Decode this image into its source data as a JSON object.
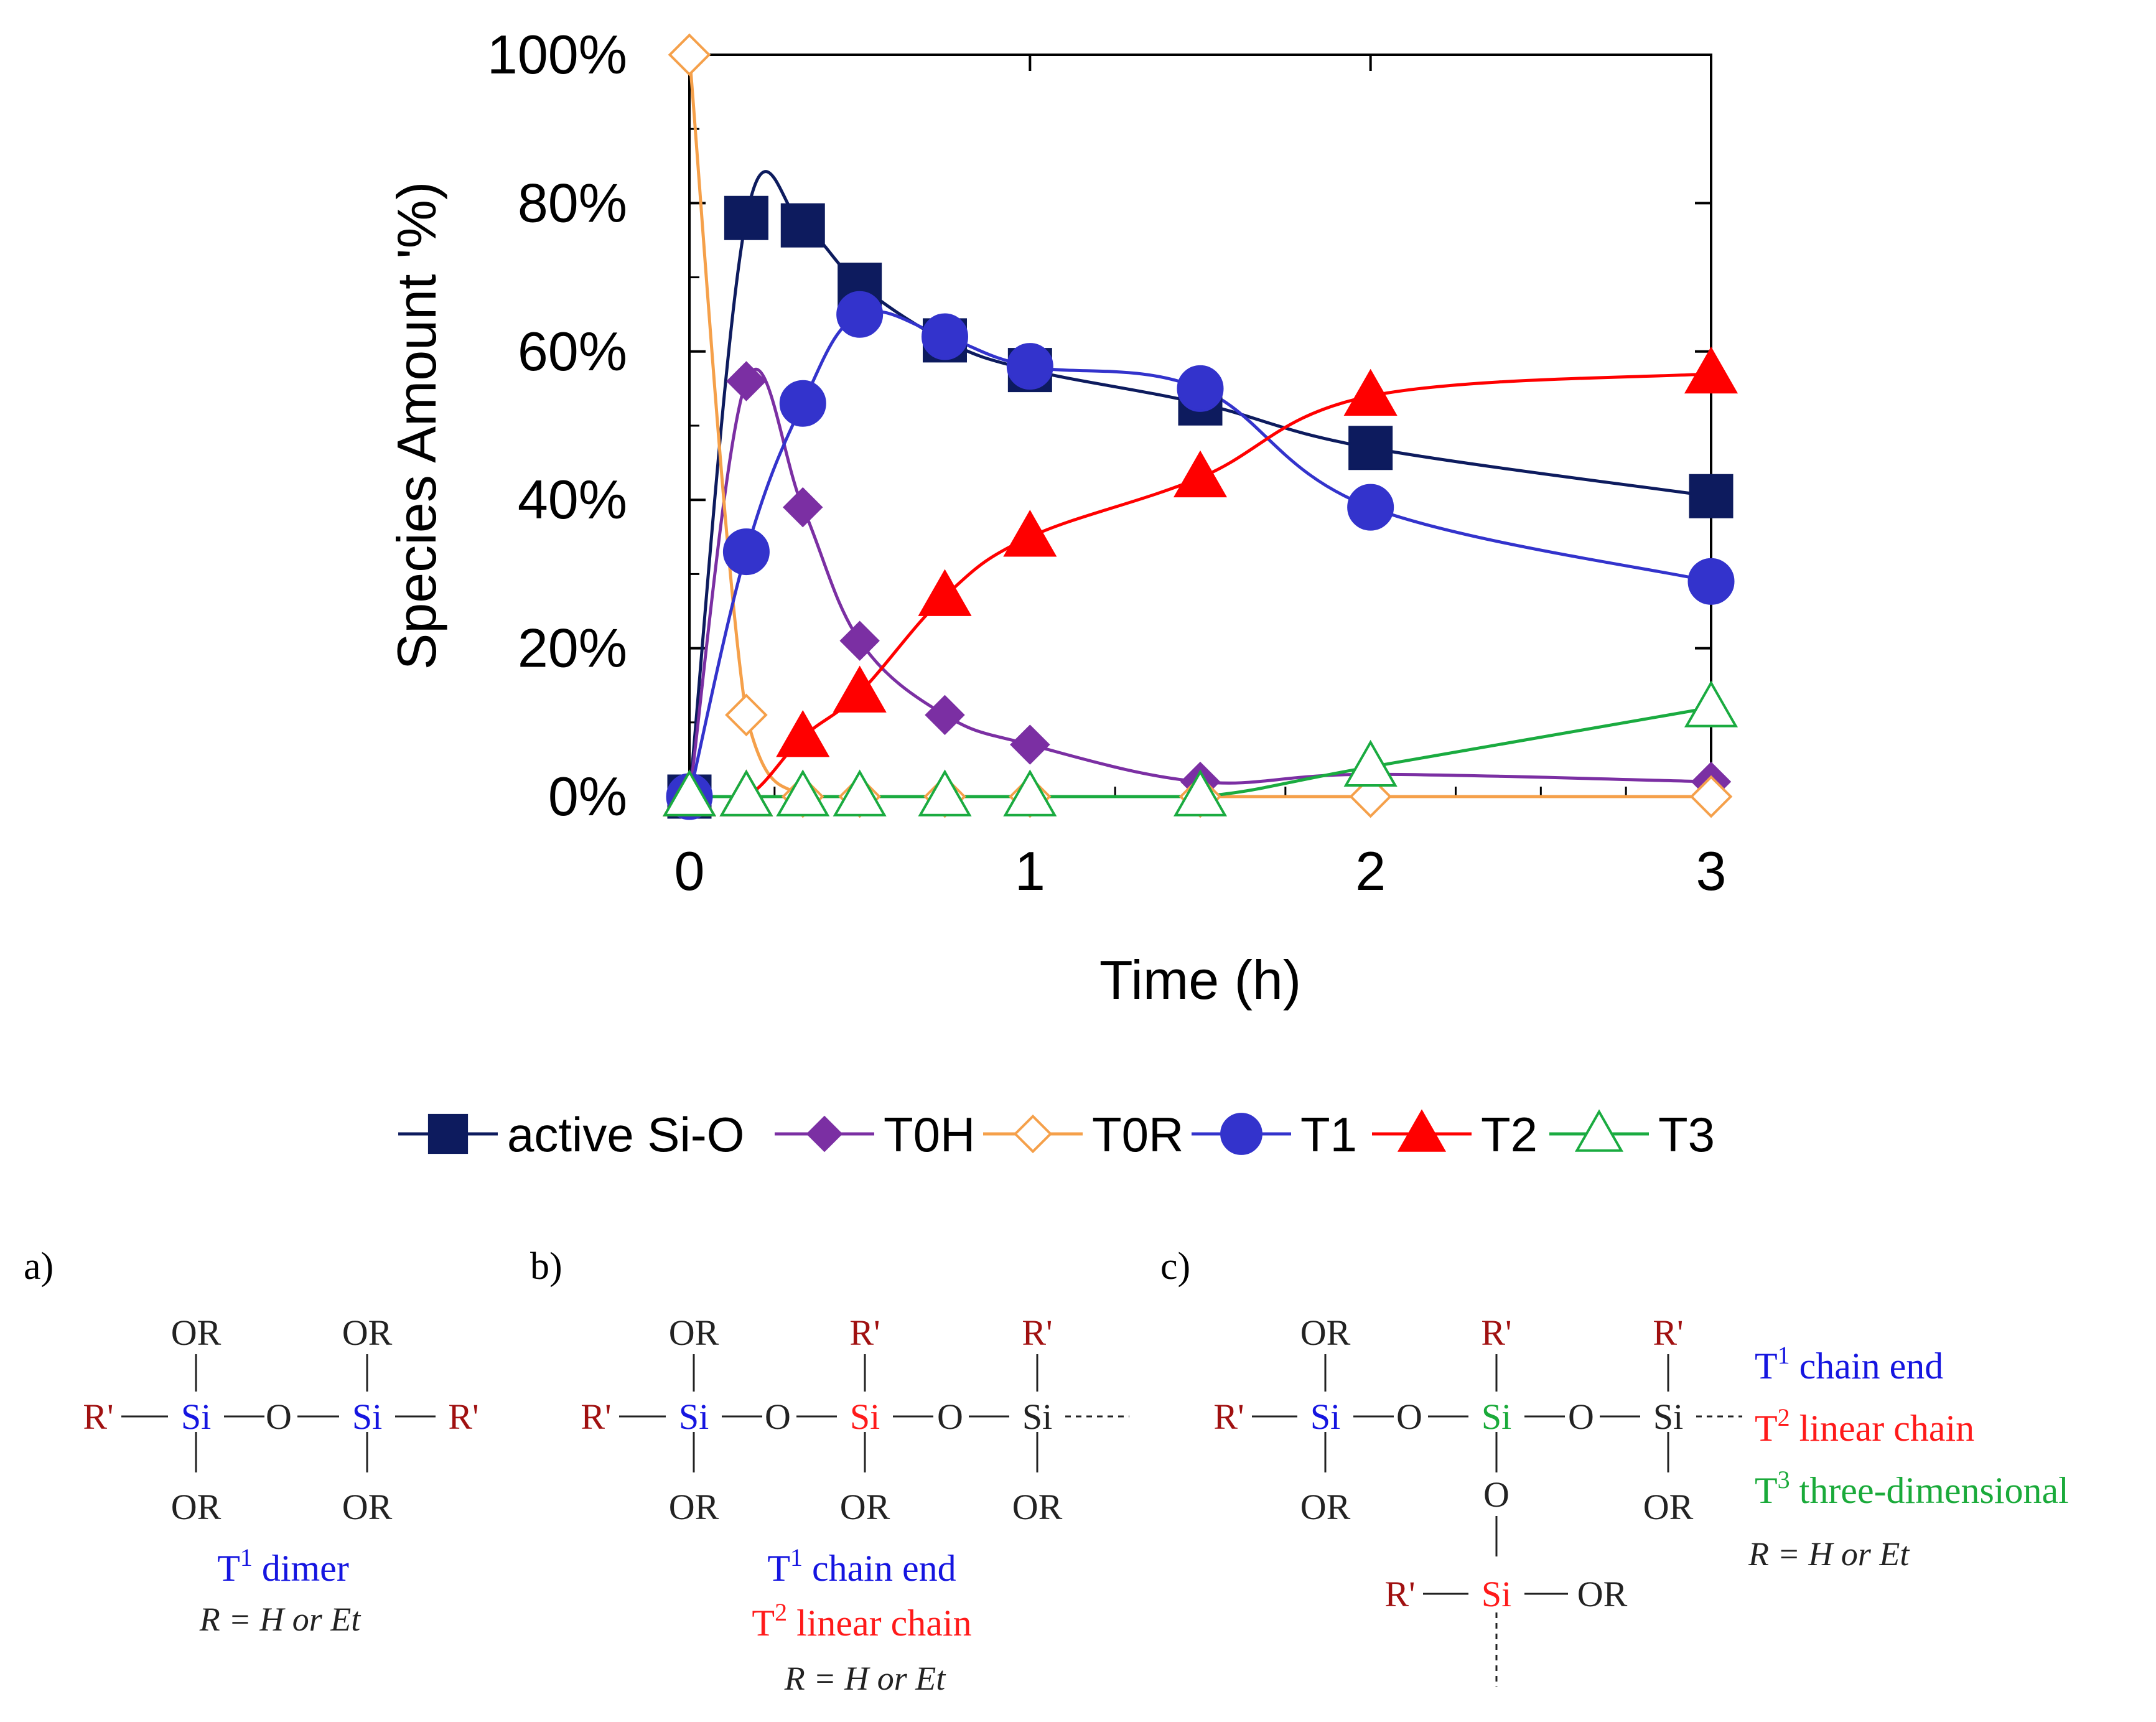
{
  "chart_data": {
    "type": "line",
    "xlabel": "Time (h)",
    "ylabel": "Species Amount '%)",
    "xlim": [
      0,
      3
    ],
    "ylim": [
      0,
      100
    ],
    "xticks": [
      {
        "value": 0,
        "label": "0"
      },
      {
        "value": 1,
        "label": "1"
      },
      {
        "value": 2,
        "label": "2"
      },
      {
        "value": 3,
        "label": "3"
      }
    ],
    "yticks": [
      {
        "value": 0,
        "label": "0%"
      },
      {
        "value": 20,
        "label": "20%"
      },
      {
        "value": 40,
        "label": "40%"
      },
      {
        "value": 60,
        "label": "60%"
      },
      {
        "value": 80,
        "label": "80%"
      },
      {
        "value": 100,
        "label": "100%"
      }
    ],
    "legend_position": "bottom",
    "grid": false,
    "series": [
      {
        "name": "active Si-O",
        "line_color": "#0d1b5e",
        "marker": "square",
        "marker_fill": "#0d1b5e",
        "x": [
          0,
          0.167,
          0.333,
          0.5,
          0.75,
          1,
          1.5,
          2,
          3
        ],
        "y": [
          0,
          78,
          77,
          69,
          61.5,
          57.5,
          53,
          47,
          40.5
        ]
      },
      {
        "name": "T0H",
        "line_color": "#7b2fa3",
        "marker": "diamond",
        "marker_fill": "#7b2fa3",
        "x": [
          0,
          0.167,
          0.333,
          0.5,
          0.75,
          1,
          1.5,
          2,
          3
        ],
        "y": [
          0,
          56,
          39,
          21,
          11,
          7,
          2,
          3,
          2
        ]
      },
      {
        "name": "T0R",
        "line_color": "#f5a04a",
        "marker": "diamond-open",
        "marker_fill": "#ffffff",
        "x": [
          0,
          0.167,
          0.333,
          0.5,
          0.75,
          1,
          1.5,
          2,
          3
        ],
        "y": [
          100,
          11,
          0,
          0,
          0,
          0,
          0,
          0,
          0
        ]
      },
      {
        "name": "T1",
        "line_color": "#3333cc",
        "marker": "circle",
        "marker_fill": "#3333cc",
        "x": [
          0,
          0.167,
          0.333,
          0.5,
          0.75,
          1,
          1.5,
          2,
          3
        ],
        "y": [
          0,
          33,
          53,
          65,
          62,
          58,
          55,
          39,
          29
        ]
      },
      {
        "name": "T2",
        "line_color": "#ff0000",
        "marker": "triangle",
        "marker_fill": "#ff0000",
        "x": [
          0,
          0.167,
          0.333,
          0.5,
          0.75,
          1,
          1.5,
          2,
          3
        ],
        "y": [
          0,
          0,
          8,
          14,
          27,
          35,
          43,
          54,
          57
        ]
      },
      {
        "name": "T3",
        "line_color": "#1aab40",
        "marker": "triangle-open",
        "marker_fill": "#ffffff",
        "x": [
          0,
          0.167,
          0.333,
          0.5,
          0.75,
          1,
          1.5,
          2,
          3
        ],
        "y": [
          0,
          0,
          0,
          0,
          0,
          0,
          0,
          4,
          12
        ]
      }
    ]
  },
  "structures": {
    "colors": {
      "r_prime": "#a01010",
      "t1": "#1515e0",
      "t2": "#ff1a1a",
      "t3": "#1aaa3a",
      "plain": "#222222"
    },
    "panel_a": {
      "label": "a)",
      "or": "OR",
      "si": "Si",
      "o": "O",
      "r_prime": "R'",
      "caption_t": "T",
      "caption_sup": "1",
      "caption_text": " dimer",
      "note": "R = H or Et"
    },
    "panel_b": {
      "label": "b)",
      "or": "OR",
      "si": "Si",
      "o": "O",
      "r_prime": "R'",
      "caption1_t": "T",
      "caption1_sup": "1",
      "caption1_text": " chain end",
      "caption2_t": "T",
      "caption2_sup": "2",
      "caption2_text": " linear chain",
      "note": "R = H or Et"
    },
    "panel_c": {
      "label": "c)",
      "or": "OR",
      "si": "Si",
      "o": "O",
      "r_prime": "R'",
      "caption1_t": "T",
      "caption1_sup": "1",
      "caption1_text": " chain end",
      "caption2_t": "T",
      "caption2_sup": "2",
      "caption2_text": " linear chain",
      "caption3_t": "T",
      "caption3_sup": "3",
      "caption3_text": " three-dimensional",
      "note": "R = H or Et"
    }
  }
}
